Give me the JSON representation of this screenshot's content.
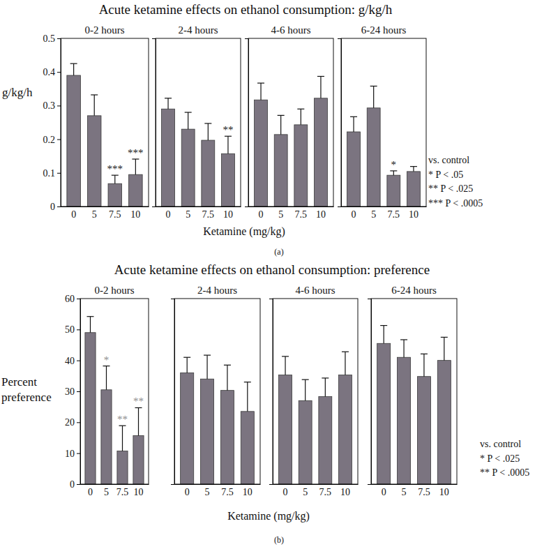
{
  "chart_data": [
    {
      "type": "bar",
      "suptitle": "Acute ketamine effects on ethanol consumption: g/kg/h",
      "title": "0-2 hours",
      "ylabel": "g/kg/h",
      "xlabel": "Ketamine (mg/kg)",
      "caption": "(a)",
      "notes": [
        "vs. control",
        "* P < .05",
        "** P < .025",
        "*** P < .0005"
      ],
      "categories": [
        "0",
        "5",
        "7.5",
        "10"
      ],
      "values": [
        0.39,
        0.27,
        0.068,
        0.095
      ],
      "errors": [
        0.035,
        0.062,
        0.025,
        0.046
      ],
      "significance": [
        null,
        null,
        "***",
        "***"
      ],
      "color": "#7b7480",
      "ylim": [
        0,
        0.5
      ],
      "yticks": [
        0,
        0.1,
        0.2,
        0.3,
        0.4,
        0.5
      ]
    },
    {
      "type": "bar",
      "title": "2-4 hours",
      "categories": [
        "0",
        "5",
        "7.5",
        "10"
      ],
      "values": [
        0.29,
        0.23,
        0.197,
        0.157
      ],
      "errors": [
        0.032,
        0.05,
        0.05,
        0.052
      ],
      "significance": [
        null,
        null,
        null,
        "**"
      ],
      "color": "#7b7480",
      "ylim": [
        0,
        0.5
      ],
      "tick_labels": "x"
    },
    {
      "type": "bar",
      "title": "4-6 hours",
      "categories": [
        "0",
        "5",
        "7.5",
        "10"
      ],
      "values": [
        0.317,
        0.214,
        0.243,
        0.322
      ],
      "errors": [
        0.05,
        0.057,
        0.047,
        0.065
      ],
      "significance": [
        null,
        null,
        null,
        null
      ],
      "color": "#7b7480",
      "ylim": [
        0,
        0.5
      ],
      "tick_labels": "x"
    },
    {
      "type": "bar",
      "title": "6-24 hours",
      "categories": [
        "0",
        "5",
        "7.5",
        "10"
      ],
      "values": [
        0.222,
        0.293,
        0.093,
        0.104
      ],
      "errors": [
        0.045,
        0.065,
        0.013,
        0.015
      ],
      "significance": [
        null,
        null,
        "*",
        null
      ],
      "color": "#7b7480",
      "ylim": [
        0,
        0.5
      ],
      "tick_labels": "x"
    },
    {
      "type": "bar",
      "suptitle": "Acute ketamine effects on ethanol consumption: preference",
      "title": "0-2 hours",
      "ylabel": "Percent preference",
      "xlabel": "Ketamine (mg/kg)",
      "caption": "(b)",
      "notes": [
        "vs. control",
        "* P < .025",
        "** P < .0005"
      ],
      "categories": [
        "0",
        "5",
        "7.5",
        "10"
      ],
      "values": [
        49,
        30.5,
        10.7,
        15.7
      ],
      "errors": [
        5.2,
        7.7,
        8.2,
        9
      ],
      "significance": [
        null,
        "*",
        "**",
        "**"
      ],
      "color": "#7b7480",
      "ylim": [
        0,
        60
      ],
      "yticks": [
        0,
        10,
        20,
        30,
        40,
        50,
        60
      ]
    },
    {
      "type": "bar",
      "title": "2-4 hours",
      "categories": [
        "0",
        "5",
        "7.5",
        "10"
      ],
      "values": [
        36,
        34,
        30.3,
        23.5
      ],
      "errors": [
        5,
        7.7,
        8.2,
        9.5
      ],
      "significance": [
        null,
        null,
        null,
        null
      ],
      "color": "#7b7480",
      "ylim": [
        0,
        60
      ],
      "tick_labels": "x"
    },
    {
      "type": "bar",
      "title": "4-6 hours",
      "categories": [
        "0",
        "5",
        "7.5",
        "10"
      ],
      "values": [
        35.3,
        27,
        28.3,
        35.3
      ],
      "errors": [
        6,
        6.8,
        6,
        7.5
      ],
      "significance": [
        null,
        null,
        null,
        null
      ],
      "color": "#7b7480",
      "ylim": [
        0,
        60
      ],
      "tick_labels": "x"
    },
    {
      "type": "bar",
      "title": "6-24 hours",
      "categories": [
        "0",
        "5",
        "7.5",
        "10"
      ],
      "values": [
        45.5,
        41,
        34.8,
        40
      ],
      "errors": [
        5.8,
        5.7,
        7.3,
        7.5
      ],
      "significance": [
        null,
        null,
        null,
        null
      ],
      "color": "#7b7480",
      "ylim": [
        0,
        60
      ],
      "tick_labels": "x"
    }
  ]
}
